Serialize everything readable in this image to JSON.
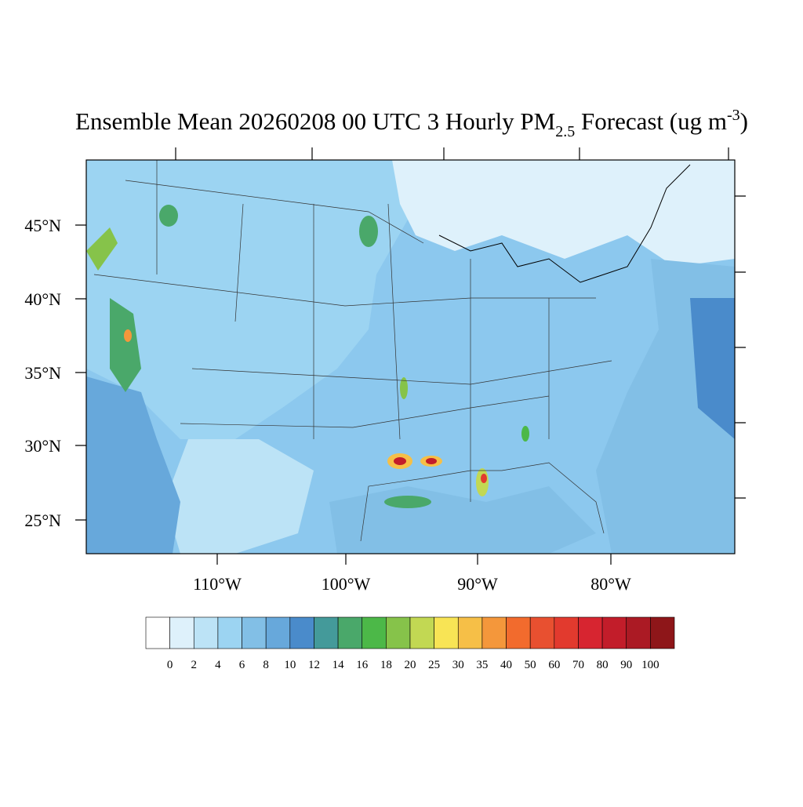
{
  "title": {
    "main": "Ensemble Mean 20260208 00 UTC 3 Hourly PM",
    "subscript": "2.5",
    "middle": " Forecast (ug m",
    "superscript": "-3",
    "end": ")"
  },
  "map": {
    "lat_labels": [
      "45°N",
      "40°N",
      "35°N",
      "30°N",
      "25°N"
    ],
    "lon_labels": [
      "110°W",
      "100°W",
      "90°W",
      "80°W"
    ]
  },
  "colorbar": {
    "levels": [
      0,
      2,
      4,
      6,
      8,
      10,
      12,
      14,
      16,
      18,
      20,
      25,
      30,
      35,
      40,
      50,
      60,
      70,
      80,
      90,
      100
    ],
    "colors": [
      "#ffffff",
      "#def1fb",
      "#bce3f6",
      "#9cd4f2",
      "#82bfe6",
      "#67a8db",
      "#4a8bcb",
      "#449a9a",
      "#4aa86a",
      "#4cb848",
      "#86c34a",
      "#c2d853",
      "#f8e455",
      "#f6bf47",
      "#f4973b",
      "#f26b2d",
      "#e85030",
      "#e23a2e",
      "#d72530",
      "#c21d2a",
      "#ab1a24",
      "#8e1619"
    ]
  }
}
